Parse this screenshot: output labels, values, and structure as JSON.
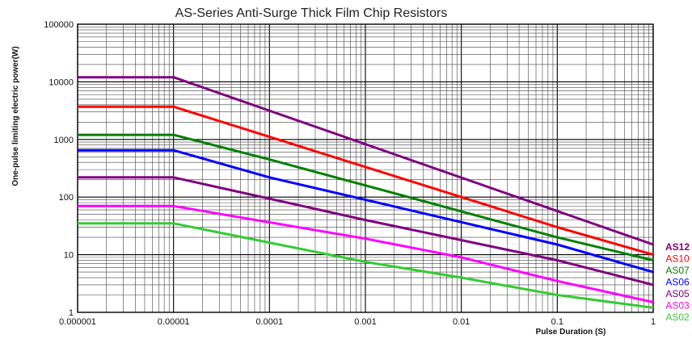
{
  "chart_data": {
    "type": "line",
    "title": "AS-Series Anti-Surge Thick Film Chip Resistors",
    "xlabel": "Pulse Duration (S)",
    "ylabel": "One-pulse limiting electric power(W)",
    "xscale": "log",
    "yscale": "log",
    "xlim": [
      1e-06,
      1
    ],
    "ylim": [
      1,
      100000
    ],
    "x_ticks": [
      "0.000001",
      "0.00001",
      "0.0001",
      "0.001",
      "0.01",
      "0.1",
      "1"
    ],
    "y_ticks": [
      "1",
      "10",
      "100",
      "1000",
      "10000",
      "100000"
    ],
    "grid": true,
    "legend_position": "right",
    "series": [
      {
        "name": "AS12",
        "color": "#800080",
        "points": [
          [
            1e-06,
            12000
          ],
          [
            1e-05,
            12000
          ],
          [
            1,
            15
          ]
        ]
      },
      {
        "name": "AS10",
        "color": "#ff0000",
        "points": [
          [
            1e-06,
            3700
          ],
          [
            1e-05,
            3700
          ],
          [
            0.1,
            30
          ],
          [
            1,
            10
          ]
        ]
      },
      {
        "name": "AS07",
        "color": "#008000",
        "points": [
          [
            1e-06,
            1200
          ],
          [
            1e-05,
            1200
          ],
          [
            0.0001,
            450
          ],
          [
            0.1,
            20
          ],
          [
            1,
            8
          ]
        ]
      },
      {
        "name": "AS06",
        "color": "#0000ff",
        "points": [
          [
            1e-06,
            650
          ],
          [
            1e-05,
            650
          ],
          [
            0.0001,
            220
          ],
          [
            0.1,
            15
          ],
          [
            1,
            5
          ]
        ]
      },
      {
        "name": "AS05",
        "color": "#800080",
        "points": [
          [
            1e-06,
            220
          ],
          [
            1e-05,
            220
          ],
          [
            0.001,
            40
          ],
          [
            0.1,
            8
          ],
          [
            1,
            3
          ]
        ]
      },
      {
        "name": "AS03",
        "color": "#ff00ff",
        "points": [
          [
            1e-06,
            70
          ],
          [
            1e-05,
            70
          ],
          [
            0.001,
            19
          ],
          [
            0.01,
            9
          ],
          [
            0.1,
            3.5
          ],
          [
            1,
            1.5
          ]
        ]
      },
      {
        "name": "AS02",
        "color": "#33cc33",
        "points": [
          [
            1e-06,
            35
          ],
          [
            1e-05,
            35
          ],
          [
            0.001,
            7.5
          ],
          [
            0.01,
            4
          ],
          [
            0.1,
            2
          ],
          [
            1,
            1.2
          ]
        ]
      }
    ]
  }
}
